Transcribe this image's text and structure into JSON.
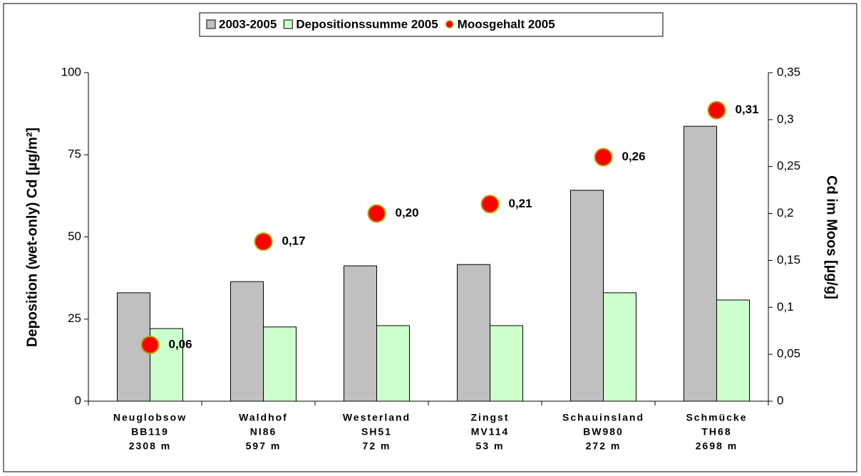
{
  "chart_data": {
    "type": "bar",
    "y_label": "Deposition (wet-only) Cd [µg/m²]",
    "y2_label": "Cd im Moos [µg/g]",
    "categories": [
      [
        "Neuglobsow",
        "BB119",
        "2308 m"
      ],
      [
        "Waldhof",
        "NI86",
        "597 m"
      ],
      [
        "Westerland",
        "SH51",
        "72 m"
      ],
      [
        "Zingst",
        "MV114",
        "53 m"
      ],
      [
        "Schauinsland",
        "BW980",
        "272 m"
      ],
      [
        "Schmücke",
        "TH68",
        "2698 m"
      ]
    ],
    "series": [
      {
        "name": "2003-2005",
        "color": "#c0c0c0",
        "values": [
          33.0,
          36.4,
          41.2,
          41.6,
          64.2,
          83.7
        ]
      },
      {
        "name": "Depositionssumme 2005",
        "color": "#ccffcc",
        "values": [
          22.1,
          22.6,
          23.0,
          23.0,
          33.0,
          30.8
        ]
      },
      {
        "name": "Moosgehalt 2005",
        "type": "scatter",
        "axis": "y2",
        "color": "#ff0000",
        "values": [
          0.06,
          0.17,
          0.2,
          0.21,
          0.26,
          0.31
        ],
        "value_labels": [
          "0,06",
          "0,17",
          "0,20",
          "0,21",
          "0,26",
          "0,31"
        ]
      }
    ],
    "ylim": [
      0,
      100
    ],
    "yticks": [
      0,
      25,
      50,
      75,
      100
    ],
    "y2lim": [
      0,
      0.35
    ],
    "y2ticks": [
      0,
      {
        "value": 0.05,
        "label": "0,05"
      },
      {
        "value": 0.1,
        "label": "0,1"
      },
      {
        "value": 0.15,
        "label": "0,15"
      },
      {
        "value": 0.2,
        "label": "0,2"
      },
      {
        "value": 0.25,
        "label": "0,25"
      },
      {
        "value": 0.3,
        "label": "0,3"
      },
      {
        "value": 0.35,
        "label": "0,35"
      }
    ],
    "legend": "top"
  }
}
